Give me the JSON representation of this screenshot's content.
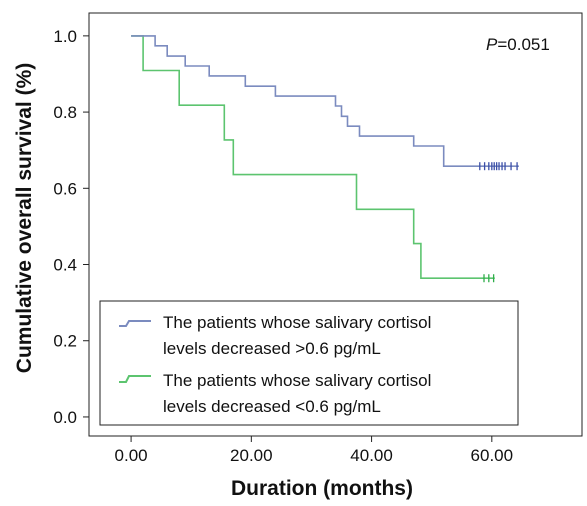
{
  "chart_data": {
    "type": "line",
    "subtype": "kaplan-meier",
    "title": "",
    "xlabel": "Duration (months)",
    "ylabel": "Cumulative overall survival (%)",
    "xlim": [
      -7,
      75
    ],
    "ylim": [
      -0.05,
      1.06
    ],
    "x_ticks": [
      0,
      20,
      40,
      60
    ],
    "x_tick_labels": [
      "0.00",
      "20.00",
      "40.00",
      "60.00"
    ],
    "y_ticks": [
      0.0,
      0.2,
      0.4,
      0.6,
      0.8,
      1.0
    ],
    "y_tick_labels": [
      "0.0",
      "0.2",
      "0.4",
      "0.6",
      "0.8",
      "1.0"
    ],
    "grid": false,
    "legend_position": "bottom-left",
    "annotation": {
      "italic": "P",
      "rest": "=0.051"
    },
    "series": [
      {
        "name_lines": [
          "The patients whose salivary cortisol",
          "levels decreased >0.6 pg/mL"
        ],
        "color": "#7b8bbf",
        "censor_color": "#3b4fa8",
        "steps": [
          [
            0,
            1.0
          ],
          [
            4,
            0.974
          ],
          [
            6,
            0.947
          ],
          [
            9,
            0.921
          ],
          [
            13,
            0.895
          ],
          [
            19,
            0.868
          ],
          [
            24,
            0.842
          ],
          [
            34,
            0.816
          ],
          [
            35,
            0.789
          ],
          [
            36,
            0.763
          ],
          [
            38,
            0.737
          ],
          [
            47,
            0.711
          ],
          [
            52,
            0.658
          ],
          [
            64.5,
            0.658
          ]
        ],
        "censored_x": [
          58,
          58.8,
          59.5,
          60,
          60.4,
          60.8,
          61.2,
          61.7,
          62.2,
          63.2,
          64.2
        ]
      },
      {
        "name_lines": [
          "The patients whose salivary cortisol",
          "levels decreased <0.6 pg/mL"
        ],
        "color": "#5cc46f",
        "censor_color": "#2fae4a",
        "steps": [
          [
            0,
            1.0
          ],
          [
            2,
            0.909
          ],
          [
            8,
            0.818
          ],
          [
            15.5,
            0.727
          ],
          [
            17,
            0.636
          ],
          [
            37.5,
            0.545
          ],
          [
            47,
            0.455
          ],
          [
            48.2,
            0.364
          ],
          [
            60.5,
            0.364
          ]
        ],
        "censored_x": [
          58.7,
          59.5,
          60.3
        ]
      }
    ]
  }
}
